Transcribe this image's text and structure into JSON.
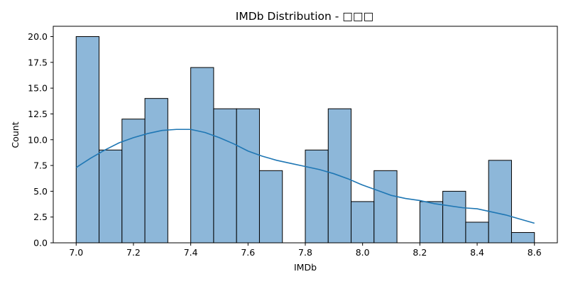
{
  "chart_data": {
    "type": "bar",
    "subtype": "histogram-with-kde",
    "title": "IMDb Distribution - □□□",
    "xlabel": "IMDb",
    "ylabel": "Count",
    "xlim": [
      6.92,
      8.68
    ],
    "ylim": [
      0,
      21.0
    ],
    "xticks": [
      "7.0",
      "7.2",
      "7.4",
      "7.6",
      "7.8",
      "8.0",
      "8.2",
      "8.4",
      "8.6"
    ],
    "yticks": [
      "0.0",
      "2.5",
      "5.0",
      "7.5",
      "10.0",
      "12.5",
      "15.0",
      "17.5",
      "20.0"
    ],
    "bins": [
      {
        "start": 7.0,
        "end": 7.08,
        "count": 20
      },
      {
        "start": 7.08,
        "end": 7.16,
        "count": 9
      },
      {
        "start": 7.16,
        "end": 7.24,
        "count": 12
      },
      {
        "start": 7.24,
        "end": 7.32,
        "count": 14
      },
      {
        "start": 7.32,
        "end": 7.4,
        "count": 0
      },
      {
        "start": 7.4,
        "end": 7.48,
        "count": 17
      },
      {
        "start": 7.48,
        "end": 7.56,
        "count": 13
      },
      {
        "start": 7.56,
        "end": 7.64,
        "count": 13
      },
      {
        "start": 7.64,
        "end": 7.72,
        "count": 7
      },
      {
        "start": 7.72,
        "end": 7.8,
        "count": 0
      },
      {
        "start": 7.8,
        "end": 7.88,
        "count": 9
      },
      {
        "start": 7.88,
        "end": 7.96,
        "count": 13
      },
      {
        "start": 7.96,
        "end": 8.04,
        "count": 4
      },
      {
        "start": 8.04,
        "end": 8.12,
        "count": 7
      },
      {
        "start": 8.12,
        "end": 8.2,
        "count": 0
      },
      {
        "start": 8.2,
        "end": 8.28,
        "count": 4
      },
      {
        "start": 8.28,
        "end": 8.36,
        "count": 5
      },
      {
        "start": 8.36,
        "end": 8.44,
        "count": 2
      },
      {
        "start": 8.44,
        "end": 8.52,
        "count": 8
      },
      {
        "start": 8.52,
        "end": 8.6,
        "count": 1
      }
    ],
    "kde": {
      "x": [
        7.0,
        7.05,
        7.1,
        7.15,
        7.2,
        7.25,
        7.3,
        7.35,
        7.4,
        7.45,
        7.5,
        7.55,
        7.6,
        7.65,
        7.7,
        7.75,
        7.8,
        7.85,
        7.9,
        7.95,
        8.0,
        8.05,
        8.1,
        8.15,
        8.2,
        8.25,
        8.3,
        8.35,
        8.4,
        8.45,
        8.5,
        8.55,
        8.6
      ],
      "y": [
        7.3,
        8.2,
        9.0,
        9.7,
        10.2,
        10.6,
        10.9,
        11.0,
        11.0,
        10.7,
        10.2,
        9.6,
        8.9,
        8.4,
        8.0,
        7.7,
        7.4,
        7.1,
        6.7,
        6.2,
        5.6,
        5.1,
        4.6,
        4.3,
        4.1,
        3.8,
        3.6,
        3.4,
        3.3,
        3.0,
        2.7,
        2.3,
        1.9
      ]
    },
    "colors": {
      "bar_fill": "#8db7d9",
      "bar_edge": "#000000",
      "kde_line": "#1f77b4"
    },
    "grid": false,
    "legend": "none"
  }
}
